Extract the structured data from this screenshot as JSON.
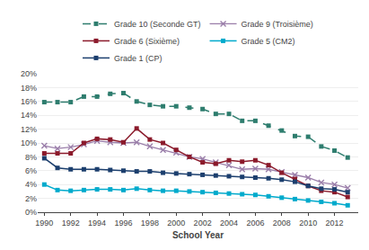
{
  "chart_data": {
    "type": "line",
    "xlabel": "School Year",
    "x": [
      1990,
      1991,
      1992,
      1993,
      1994,
      1995,
      1996,
      1997,
      1998,
      1999,
      2000,
      2001,
      2002,
      2003,
      2004,
      2005,
      2006,
      2007,
      2008,
      2009,
      2010,
      2011,
      2012,
      2013
    ],
    "series": [
      {
        "name": "Grade 10 (Seconde GT)",
        "color": "#2e7d6e",
        "line_style": "dash",
        "marker": "square",
        "values": [
          15.9,
          15.9,
          15.9,
          16.7,
          16.7,
          17.1,
          17.2,
          16.0,
          15.5,
          15.3,
          15.3,
          15.1,
          14.9,
          14.2,
          14.2,
          13.2,
          13.2,
          12.5,
          11.8,
          11.0,
          10.9,
          9.5,
          8.9,
          7.9
        ]
      },
      {
        "name": "Grade 9 (Troisième)",
        "color": "#9b7faa",
        "line_style": "solid",
        "marker": "x",
        "values": [
          9.6,
          9.2,
          9.4,
          9.8,
          10.3,
          10.1,
          10.0,
          10.1,
          9.5,
          9.0,
          8.6,
          8.0,
          7.7,
          7.2,
          6.8,
          6.2,
          6.3,
          6.2,
          5.8,
          5.4,
          5.0,
          4.3,
          4.0,
          3.5
        ]
      },
      {
        "name": "Grade 6 (Sixième)",
        "color": "#8b1a2b",
        "line_style": "solid",
        "marker": "square",
        "values": [
          8.5,
          8.5,
          8.5,
          10.0,
          10.6,
          10.5,
          10.1,
          12.1,
          10.5,
          10.0,
          9.0,
          8.0,
          7.2,
          7.0,
          7.5,
          7.3,
          7.5,
          6.8,
          5.7,
          4.8,
          3.8,
          3.1,
          2.9,
          2.2
        ]
      },
      {
        "name": "Grade 5 (CM2)",
        "color": "#00aacc",
        "line_style": "solid",
        "marker": "square",
        "values": [
          4.0,
          3.2,
          3.1,
          3.2,
          3.3,
          3.3,
          3.2,
          3.4,
          3.2,
          3.1,
          3.1,
          3.0,
          2.9,
          2.8,
          2.7,
          2.6,
          2.5,
          2.3,
          2.1,
          1.9,
          1.7,
          1.5,
          1.3,
          1.0
        ]
      },
      {
        "name": "Grade 1 (CP)",
        "color": "#1c3f6e",
        "line_style": "solid",
        "marker": "square",
        "values": [
          7.8,
          6.4,
          6.2,
          6.2,
          6.2,
          6.1,
          6.0,
          5.9,
          5.9,
          5.7,
          5.6,
          5.5,
          5.4,
          5.3,
          5.2,
          5.1,
          5.0,
          4.9,
          4.7,
          4.4,
          3.8,
          3.4,
          3.3,
          2.9
        ]
      }
    ],
    "xlim": [
      1989.5,
      2013.8
    ],
    "xticks": [
      1990,
      1992,
      1994,
      1996,
      1998,
      2000,
      2002,
      2004,
      2006,
      2008,
      2010,
      2012
    ],
    "ylim": [
      0,
      20
    ],
    "yticks": [
      {
        "value": 0,
        "label": "0%"
      },
      {
        "value": 2,
        "label": "2%"
      },
      {
        "value": 4,
        "label": "4%"
      },
      {
        "value": 6,
        "label": "6%"
      },
      {
        "value": 8,
        "label": "8%"
      },
      {
        "value": 10,
        "label": "10%"
      },
      {
        "value": 12,
        "label": "12%"
      },
      {
        "value": 14,
        "label": "14%"
      },
      {
        "value": 16,
        "label": "16%"
      },
      {
        "value": 18,
        "label": "18%"
      },
      {
        "value": 20,
        "label": "20%"
      }
    ],
    "grid": true,
    "legend": "top"
  }
}
